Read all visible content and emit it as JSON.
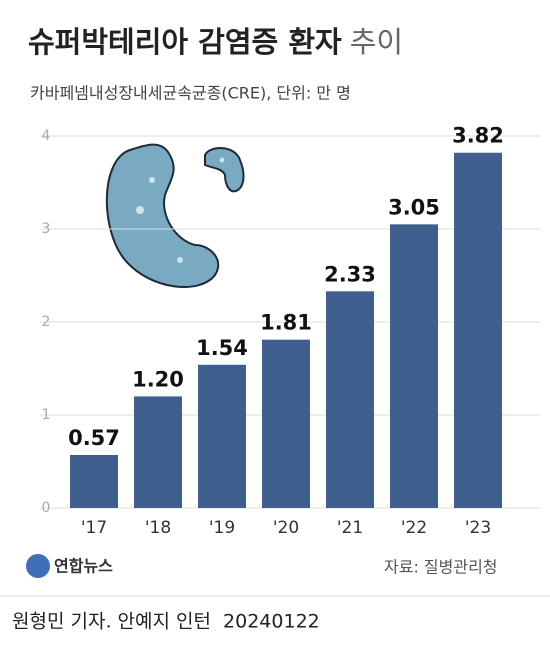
{
  "chart_data": {
    "type": "bar",
    "title": "슈퍼박테리아 감염증 환자",
    "title_light": "추이",
    "subtitle": "카바페넴내성장내세균속균종(CRE), 단위: 만 명",
    "categories": [
      "'17",
      "'18",
      "'19",
      "'20",
      "'21",
      "'22",
      "'23"
    ],
    "values": [
      0.57,
      1.2,
      1.54,
      1.81,
      2.33,
      3.05,
      3.82
    ],
    "value_labels": [
      "0.57",
      "1.20",
      "1.54",
      "1.81",
      "2.33",
      "3.05",
      "3.82"
    ],
    "color": "#3f5f8e",
    "ylim": [
      0,
      4
    ],
    "yticks": [
      0,
      1,
      2,
      3,
      4
    ],
    "grid": true,
    "source": "자료: 질병관리청",
    "logo": "연합뉴스",
    "credit": "원형민 기자. 안예지 인턴  20240122"
  }
}
